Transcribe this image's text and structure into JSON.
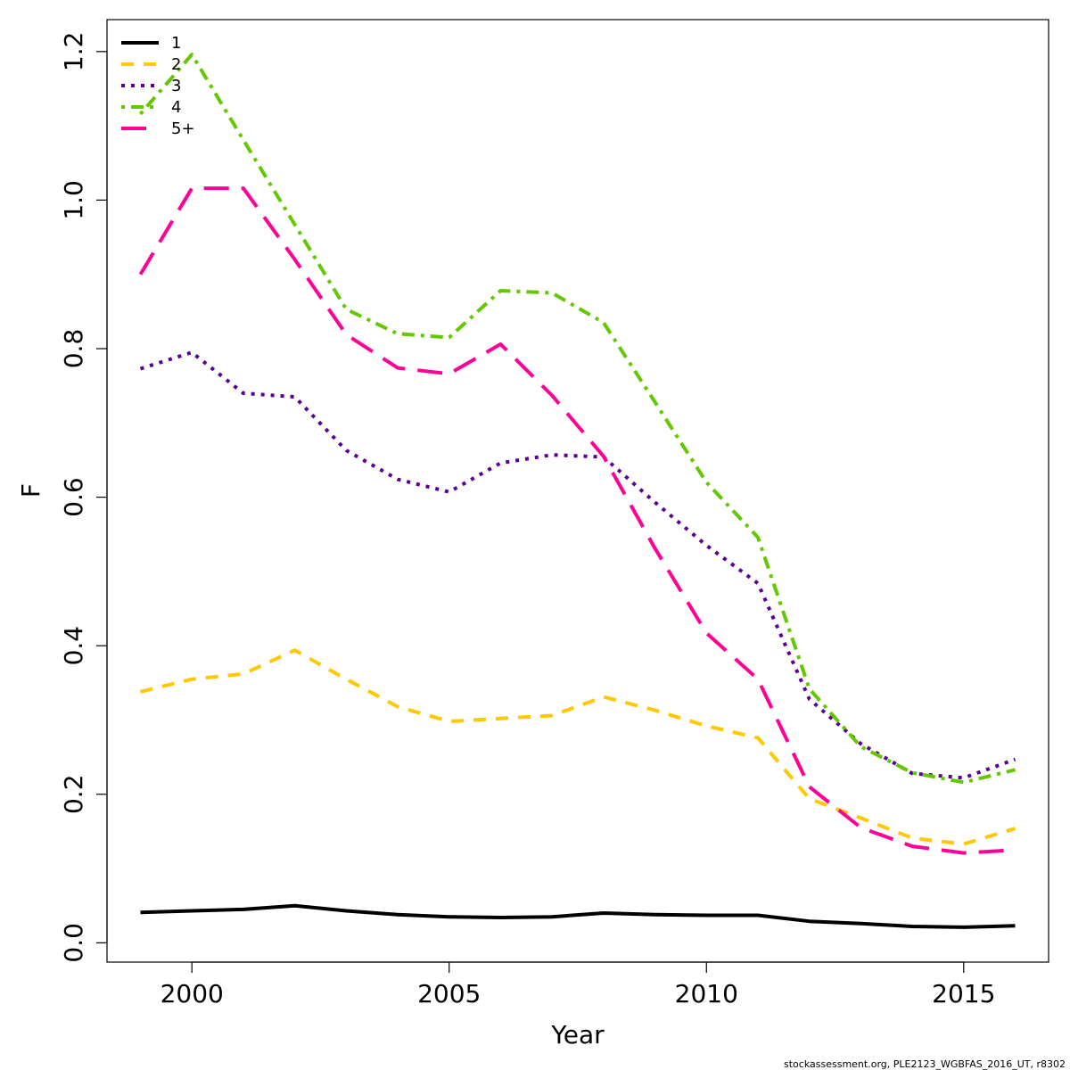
{
  "chart_data": {
    "type": "line",
    "xlabel": "Year",
    "ylabel": "F",
    "xlim": [
      1998.35,
      2016.65
    ],
    "ylim": [
      -0.026,
      1.243
    ],
    "xticks": [
      2000,
      2005,
      2010,
      2015
    ],
    "yticks": [
      0.0,
      0.2,
      0.4,
      0.6,
      0.8,
      1.0,
      1.2
    ],
    "xtick_labels": [
      "2000",
      "2005",
      "2010",
      "2015"
    ],
    "ytick_labels": [
      "0.0",
      "0.2",
      "0.4",
      "0.6",
      "0.8",
      "1.0",
      "1.2"
    ],
    "legend_position": "top-left",
    "grid": false,
    "x": [
      1999,
      2000,
      2001,
      2002,
      2003,
      2004,
      2005,
      2006,
      2007,
      2008,
      2009,
      2010,
      2011,
      2012,
      2013,
      2014,
      2015,
      2016
    ],
    "series": [
      {
        "name": "1",
        "color": "#000000",
        "dash": "solid",
        "values": [
          0.041,
          0.043,
          0.045,
          0.05,
          0.043,
          0.038,
          0.035,
          0.034,
          0.035,
          0.04,
          0.038,
          0.037,
          0.037,
          0.029,
          0.026,
          0.022,
          0.021,
          0.023
        ]
      },
      {
        "name": "2",
        "color": "#FFC800",
        "dash": "dashed",
        "values": [
          0.338,
          0.355,
          0.362,
          0.394,
          0.355,
          0.318,
          0.298,
          0.302,
          0.306,
          0.331,
          0.313,
          0.292,
          0.276,
          0.194,
          0.168,
          0.141,
          0.133,
          0.154
        ]
      },
      {
        "name": "3",
        "color": "#5A0096",
        "dash": "dotted",
        "values": [
          0.773,
          0.795,
          0.74,
          0.735,
          0.663,
          0.624,
          0.607,
          0.646,
          0.657,
          0.654,
          0.593,
          0.535,
          0.484,
          0.328,
          0.268,
          0.228,
          0.222,
          0.247
        ]
      },
      {
        "name": "4",
        "color": "#64C800",
        "dash": "dotdash",
        "values": [
          1.116,
          1.196,
          1.081,
          0.967,
          0.853,
          0.82,
          0.815,
          0.878,
          0.875,
          0.835,
          0.728,
          0.62,
          0.546,
          0.342,
          0.264,
          0.229,
          0.216,
          0.233
        ]
      },
      {
        "name": "5+",
        "color": "#FF0096",
        "dash": "longdash",
        "values": [
          0.9,
          1.016,
          1.016,
          0.92,
          0.819,
          0.774,
          0.766,
          0.806,
          0.737,
          0.655,
          0.531,
          0.417,
          0.355,
          0.21,
          0.155,
          0.13,
          0.121,
          0.125
        ]
      }
    ]
  },
  "footer": "stockassessment.org, PLE2123_WGBFAS_2016_UT, r8302"
}
